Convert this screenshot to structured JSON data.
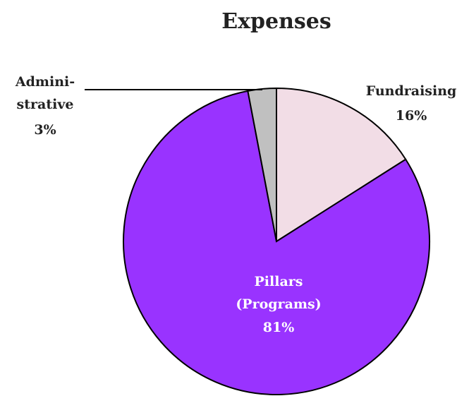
{
  "chart_data": {
    "type": "pie",
    "title": "Expenses",
    "categories": [
      "Fundraising",
      "Pillars\n(Programs)",
      "Admini-\nstrative"
    ],
    "values": [
      16,
      81,
      3
    ],
    "value_labels": [
      "16%",
      "81%",
      "3%"
    ],
    "colors": [
      "#f2dde6",
      "#9933ff",
      "#c0c0c0"
    ]
  }
}
